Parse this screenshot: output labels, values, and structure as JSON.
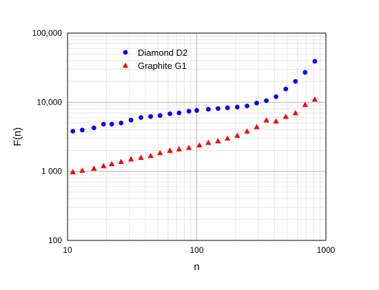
{
  "chart_data": {
    "type": "scatter",
    "xlabel": "n",
    "ylabel": "F(n)",
    "xscale": "log",
    "yscale": "log",
    "xlim": [
      10,
      1000
    ],
    "ylim": [
      100,
      100000
    ],
    "x_ticks": [
      {
        "value": 10,
        "label": "10"
      },
      {
        "value": 100,
        "label": "100"
      },
      {
        "value": 1000,
        "label": "1000"
      }
    ],
    "y_ticks": [
      {
        "value": 100,
        "label": "100"
      },
      {
        "value": 1000,
        "label": "1 000"
      },
      {
        "value": 10000,
        "label": "10,000"
      },
      {
        "value": 100000,
        "label": "100,000"
      }
    ],
    "grid": true,
    "legend_position": "top-left",
    "series": [
      {
        "name": "Diamond D2",
        "color": "#0000ff",
        "marker": "circle",
        "points": [
          [
            11,
            3800
          ],
          [
            13,
            3950
          ],
          [
            16,
            4250
          ],
          [
            19,
            4800
          ],
          [
            22,
            4800
          ],
          [
            26,
            5000
          ],
          [
            31,
            5500
          ],
          [
            37,
            6000
          ],
          [
            44,
            6200
          ],
          [
            52,
            6400
          ],
          [
            62,
            6800
          ],
          [
            73,
            7000
          ],
          [
            87,
            7400
          ],
          [
            100,
            7600
          ],
          [
            123,
            7900
          ],
          [
            146,
            8100
          ],
          [
            173,
            8300
          ],
          [
            206,
            8500
          ],
          [
            245,
            8800
          ],
          [
            291,
            9700
          ],
          [
            346,
            10500
          ],
          [
            411,
            12000
          ],
          [
            489,
            15500
          ],
          [
            581,
            20000
          ],
          [
            690,
            27000
          ],
          [
            820,
            39000
          ]
        ]
      },
      {
        "name": "Graphite G1",
        "color": "#ff0000",
        "marker": "triangle",
        "points": [
          [
            11,
            980
          ],
          [
            13,
            1030
          ],
          [
            16,
            1100
          ],
          [
            19,
            1200
          ],
          [
            22,
            1280
          ],
          [
            26,
            1380
          ],
          [
            31,
            1500
          ],
          [
            37,
            1580
          ],
          [
            44,
            1680
          ],
          [
            52,
            1850
          ],
          [
            62,
            2000
          ],
          [
            73,
            2100
          ],
          [
            87,
            2200
          ],
          [
            105,
            2400
          ],
          [
            123,
            2600
          ],
          [
            146,
            2750
          ],
          [
            173,
            3000
          ],
          [
            206,
            3300
          ],
          [
            245,
            3800
          ],
          [
            291,
            4400
          ],
          [
            346,
            5500
          ],
          [
            411,
            5300
          ],
          [
            489,
            6200
          ],
          [
            581,
            7000
          ],
          [
            690,
            9200
          ],
          [
            820,
            11000
          ]
        ]
      }
    ]
  }
}
